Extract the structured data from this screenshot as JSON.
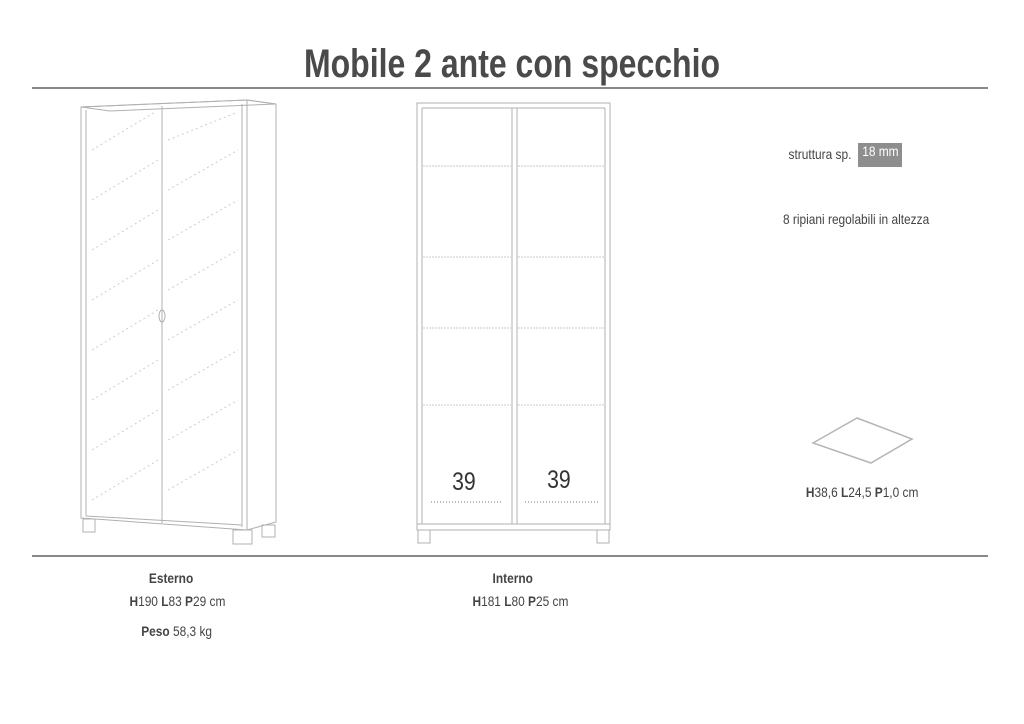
{
  "title": "Mobile 2 ante con specchio",
  "notes": {
    "structure_label": "struttura sp.",
    "structure_value": "18 mm",
    "shelves_note": "8 ripiani regolabili in altezza"
  },
  "shelf_dims": {
    "h": "H",
    "h_val": "38,6",
    "l": "L",
    "l_val": "24,5",
    "p": "P",
    "p_val": "1,0 cm"
  },
  "interior_widths": [
    "39",
    "39"
  ],
  "exterior": {
    "heading": "Esterno",
    "h": "H",
    "h_val": "190",
    "l": "L",
    "l_val": "83",
    "p": "P",
    "p_val": "29 cm",
    "weight_label": "Peso",
    "weight_val": "58,3 kg"
  },
  "interior": {
    "heading": "Interno",
    "h": "H",
    "h_val": "181",
    "l": "L",
    "l_val": "80",
    "p": "P",
    "p_val": "25 cm"
  },
  "colors": {
    "rule": "#888888",
    "badge": "#8e8e8e",
    "line": "#b5b5b5"
  }
}
